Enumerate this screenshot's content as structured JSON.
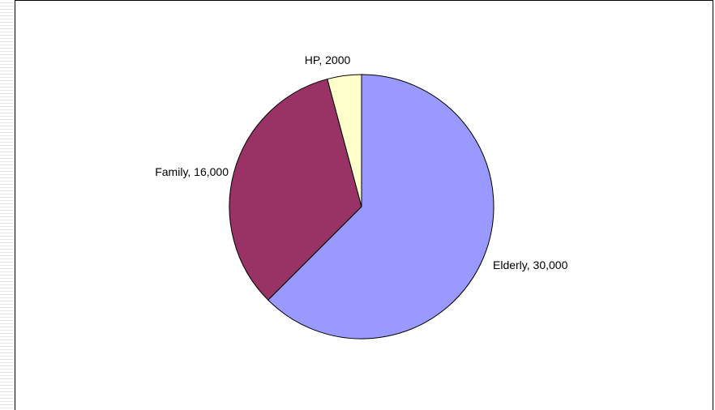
{
  "chart_data": {
    "type": "pie",
    "title": "",
    "slices": [
      {
        "name": "Elderly",
        "value": 30000,
        "label": "Elderly, 30,000",
        "color": "#9999ff"
      },
      {
        "name": "Family",
        "value": 16000,
        "label": "Family, 16,000",
        "color": "#993366"
      },
      {
        "name": "HP",
        "value": 2000,
        "label": "HP, 2000",
        "color": "#ffffcc"
      }
    ],
    "start_angle_deg": 0,
    "direction": "clockwise",
    "slice_border_color": "#000000"
  }
}
